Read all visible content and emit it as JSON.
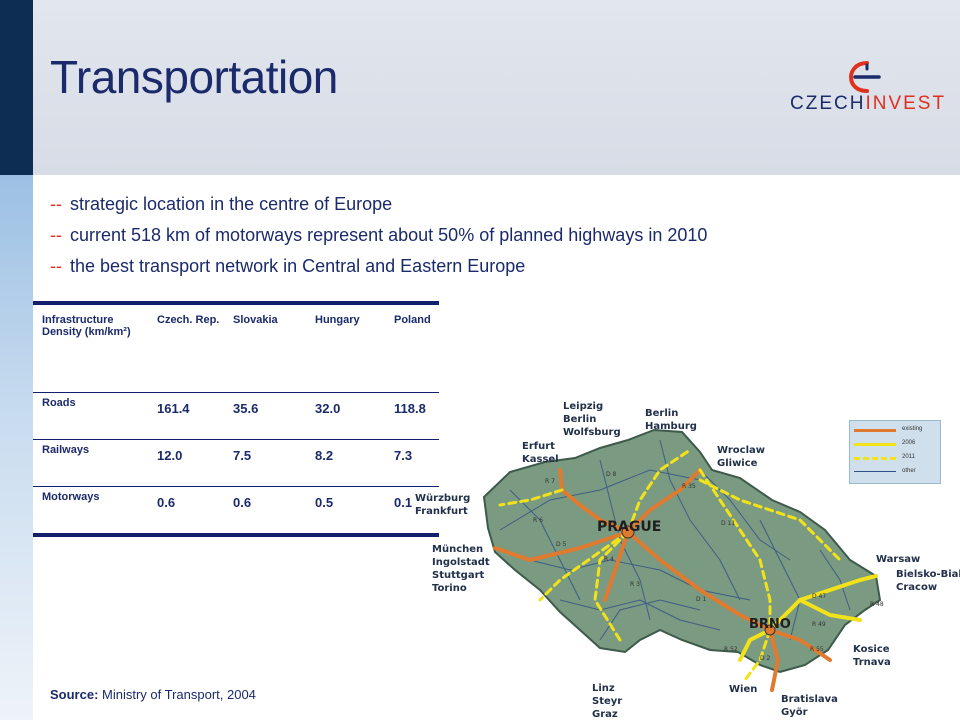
{
  "slide": {
    "title": "Transportation",
    "logo_text_a": "CZECH",
    "logo_text_b": "INVEST"
  },
  "bullets": {
    "dash": "--",
    "items": [
      "strategic location in the centre of Europe",
      "current 518 km of motorways represent about 50% of planned highways in 2010",
      "the best transport network in Central and Eastern Europe"
    ]
  },
  "table": {
    "headers": [
      "Infrastructure Density (km/km²)",
      "Czech. Rep.",
      "Slovakia",
      "Hungary",
      "Poland"
    ],
    "rows": [
      {
        "label": "Roads",
        "values": [
          "161.4",
          "35.6",
          "32.0",
          "118.8"
        ]
      },
      {
        "label": "Railways",
        "values": [
          "12.0",
          "7.5",
          "8.2",
          "7.3"
        ]
      },
      {
        "label": "Motorways",
        "values": [
          "0.6",
          "0.6",
          "0.5",
          "0.1"
        ]
      }
    ]
  },
  "source": {
    "label": "Source:",
    "text": " Ministry of Transport, 2004"
  },
  "map": {
    "cities": {
      "prague": "PRAGUE",
      "brno": "BRNO"
    },
    "labels": {
      "leipzig": "Leipzig\nBerlin\nWolfsburg",
      "berlin": "Berlin\nHamburg",
      "erfurt": "Erfurt\nKassel",
      "wroclaw": "Wroclaw\nGliwice",
      "wurzburg": "Würzburg\nFrankfurt",
      "munchen": "München\nIngolstadt\nStuttgart\nTorino",
      "warsaw": "Warsaw",
      "bielsko": "Bielsko-Biala\nCracow",
      "kosice": "Kosice\nTrnava",
      "linz": "Linz\nSteyr\nGraz",
      "wien": "Wien",
      "bratislava": "Bratislava\nGyör"
    },
    "routes": {
      "d8": "D 8",
      "r7": "R 7",
      "r35": "R 35",
      "r6": "R 6",
      "d11": "D 11",
      "d5": "D 5",
      "r4": "R 4",
      "r3": "R 3",
      "d1": "D 1",
      "d47": "D 47",
      "r48": "R 48",
      "r49": "R 49",
      "r55": "R 55",
      "r52": "R 52",
      "d2": "D 2"
    },
    "legend": [
      {
        "label": "existing",
        "color": "#e07a2e",
        "style": "solid"
      },
      {
        "label": "2006",
        "color": "#f2e21a",
        "style": "solid"
      },
      {
        "label": "2011",
        "color": "#f2e21a",
        "style": "dashed"
      },
      {
        "label": "other",
        "color": "#2f4f86",
        "style": "thin"
      }
    ]
  },
  "colors": {
    "title": "#1b2a6b",
    "accent": "#e0301e",
    "map_fill": "#7b9a82",
    "motorway": "#e07a2e",
    "planned": "#f2e21a"
  }
}
